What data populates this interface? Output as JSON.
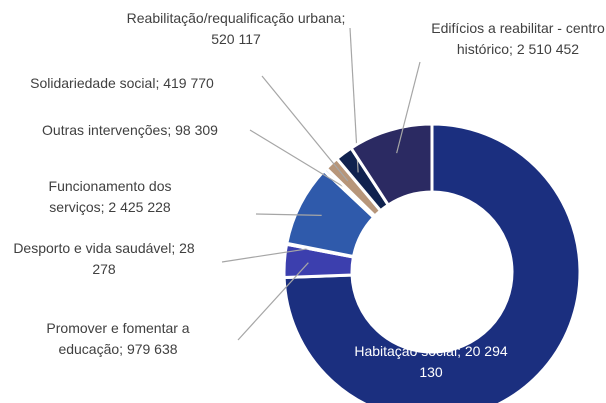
{
  "chart_data": {
    "type": "donut",
    "categories": [
      "Habitação social",
      "Promover e fomentar a educação",
      "Desporto e vida saudável",
      "Funcionamento dos serviços",
      "Outras intervenções",
      "Solidariedade social",
      "Reabilitação/requalificação urbana",
      "Edifícios a reabilitar - centro histórico"
    ],
    "values": [
      20294130,
      979638,
      28278,
      2425228,
      98309,
      419770,
      520117,
      2510452
    ],
    "value_labels": [
      "20 294 130",
      "979 638",
      "28 278",
      "2 425 228",
      "98 309",
      "419 770",
      "520 117",
      "2 510 452"
    ],
    "label_separator": "; ",
    "colors": [
      "#1b2f7f",
      "#3c3fae",
      "#6a80d0",
      "#2f5aab",
      "#8ea7d8",
      "#b7967a",
      "#10224f",
      "#2b2a62"
    ]
  }
}
